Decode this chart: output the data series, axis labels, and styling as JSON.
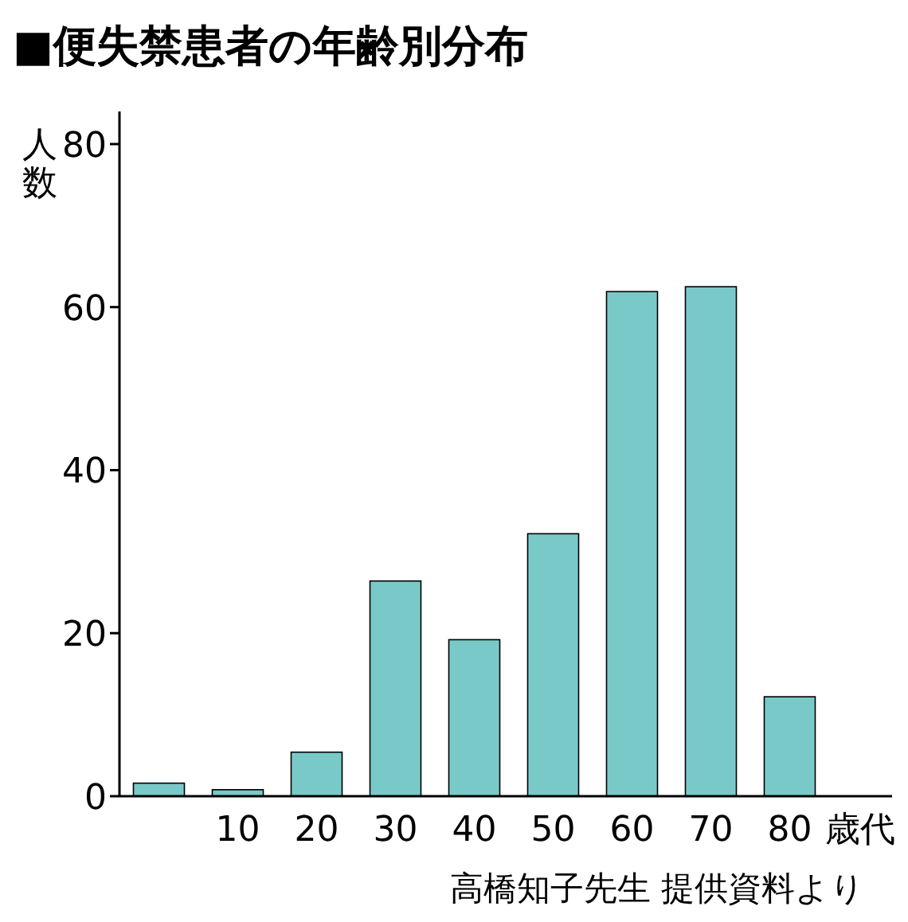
{
  "chart_data": {
    "type": "bar",
    "title": "■便失禁患者の年齢別分布",
    "categories": [
      null,
      "10",
      "20",
      "30",
      "40",
      "50",
      "60",
      "70",
      "80"
    ],
    "values": [
      1.6,
      0.8,
      5.4,
      26.4,
      19.2,
      32.2,
      61.9,
      62.5,
      12.2
    ],
    "color": "#7ac9c9",
    "xlabel": "歳代",
    "ylabel": "人数",
    "ylim": [
      0,
      84
    ],
    "yticks": [
      0,
      20,
      40,
      60,
      80
    ],
    "annotations": [
      "高橋知子先生 提供資料より"
    ]
  }
}
